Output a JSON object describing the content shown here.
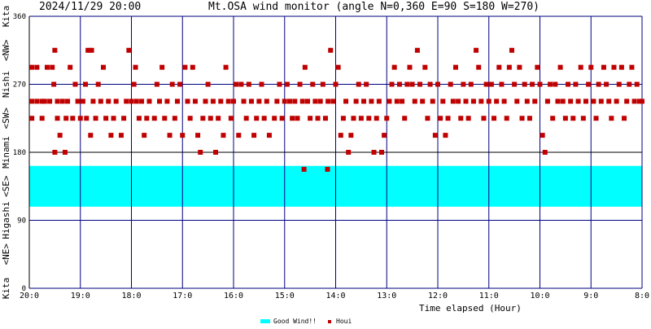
{
  "header": {
    "timestamp": "2024/11/29 20:00",
    "title": "Mt.OSA wind monitor (angle N=0,360 E=90 S=180 W=270)"
  },
  "colors": {
    "background": "#ffffff",
    "grid": "#000080",
    "frame": "#000000",
    "band": "#00ffff",
    "marker": "#c00000",
    "text": "#000000"
  },
  "chart_data": {
    "type": "scatter",
    "title": "Mt.OSA wind monitor (angle N=0,360 E=90 S=180 W=270)",
    "xlabel": "Time elapsed (Hour)",
    "ylabel": "",
    "xlim": [
      20,
      8
    ],
    "ylim": [
      0,
      360
    ],
    "x_ticks": [
      {
        "value": 20,
        "label": "20:0"
      },
      {
        "value": 19,
        "label": "19:0"
      },
      {
        "value": 18,
        "label": "18:0"
      },
      {
        "value": 17,
        "label": "17:0"
      },
      {
        "value": 16,
        "label": "16:0"
      },
      {
        "value": 15,
        "label": "15:0"
      },
      {
        "value": 14,
        "label": "14:0"
      },
      {
        "value": 13,
        "label": "13:0"
      },
      {
        "value": 12,
        "label": "12:0"
      },
      {
        "value": 11,
        "label": "11:0"
      },
      {
        "value": 10,
        "label": "10:0"
      },
      {
        "value": 9,
        "label": "9:0"
      },
      {
        "value": 8,
        "label": "8:0"
      }
    ],
    "y_ticks": [
      {
        "value": 0,
        "label": "0"
      },
      {
        "value": 90,
        "label": "90"
      },
      {
        "value": 180,
        "label": "180"
      },
      {
        "value": 270,
        "label": "270"
      },
      {
        "value": 360,
        "label": "360"
      }
    ],
    "direction_labels": [
      {
        "value": 0,
        "label": "Kita"
      },
      {
        "value": 45,
        "label": "<NE>"
      },
      {
        "value": 90,
        "label": "Higashi"
      },
      {
        "value": 135,
        "label": "<SE>"
      },
      {
        "value": 180,
        "label": "Minami"
      },
      {
        "value": 225,
        "label": "<SW>"
      },
      {
        "value": 270,
        "label": "Nishi"
      },
      {
        "value": 315,
        "label": "<NW>"
      },
      {
        "value": 360,
        "label": "Kita"
      }
    ],
    "good_wind_range": [
      108,
      162
    ],
    "legend": {
      "placement": "bottom-center",
      "entries": [
        {
          "name": "Good Wind!!",
          "kind": "band"
        },
        {
          "name": "Houi",
          "kind": "marker"
        }
      ]
    },
    "grid": true,
    "series": [
      {
        "name": "Houi",
        "points": [
          [
            19.95,
            247.5
          ],
          [
            19.95,
            225
          ],
          [
            19.95,
            292.5
          ],
          [
            19.85,
            247.5
          ],
          [
            19.85,
            292.5
          ],
          [
            19.75,
            247.5
          ],
          [
            19.75,
            225
          ],
          [
            19.7,
            247.5
          ],
          [
            19.65,
            292.5
          ],
          [
            19.6,
            247.5
          ],
          [
            19.55,
            292.5
          ],
          [
            19.52,
            270
          ],
          [
            19.5,
            315
          ],
          [
            19.5,
            180
          ],
          [
            19.45,
            247.5
          ],
          [
            19.45,
            225
          ],
          [
            19.4,
            202.5
          ],
          [
            19.35,
            247.5
          ],
          [
            19.3,
            180
          ],
          [
            19.28,
            225
          ],
          [
            19.25,
            247.5
          ],
          [
            19.2,
            292.5
          ],
          [
            19.15,
            225
          ],
          [
            19.1,
            270
          ],
          [
            19.05,
            247.5
          ],
          [
            19.0,
            225
          ],
          [
            18.95,
            247.5
          ],
          [
            18.9,
            270
          ],
          [
            18.88,
            225
          ],
          [
            18.85,
            315
          ],
          [
            18.8,
            202.5
          ],
          [
            18.78,
            315
          ],
          [
            18.75,
            247.5
          ],
          [
            18.7,
            225
          ],
          [
            18.65,
            270
          ],
          [
            18.6,
            247.5
          ],
          [
            18.55,
            292.5
          ],
          [
            18.5,
            225
          ],
          [
            18.45,
            247.5
          ],
          [
            18.4,
            202.5
          ],
          [
            18.35,
            225
          ],
          [
            18.3,
            247.5
          ],
          [
            18.2,
            202.5
          ],
          [
            18.15,
            225
          ],
          [
            18.1,
            247.5
          ],
          [
            18.05,
            315
          ],
          [
            18.0,
            247.5
          ],
          [
            17.95,
            270
          ],
          [
            17.92,
            292.5
          ],
          [
            17.9,
            247.5
          ],
          [
            17.85,
            225
          ],
          [
            17.8,
            247.5
          ],
          [
            17.75,
            202.5
          ],
          [
            17.7,
            225
          ],
          [
            17.65,
            247.5
          ],
          [
            17.55,
            225
          ],
          [
            17.5,
            270
          ],
          [
            17.45,
            247.5
          ],
          [
            17.4,
            292.5
          ],
          [
            17.35,
            225
          ],
          [
            17.3,
            247.5
          ],
          [
            17.25,
            202.5
          ],
          [
            17.2,
            270
          ],
          [
            17.15,
            225
          ],
          [
            17.1,
            247.5
          ],
          [
            17.05,
            270
          ],
          [
            17.0,
            202.5
          ],
          [
            16.95,
            292.5
          ],
          [
            16.9,
            247.5
          ],
          [
            16.85,
            225
          ],
          [
            16.8,
            292.5
          ],
          [
            16.75,
            247.5
          ],
          [
            16.7,
            202.5
          ],
          [
            16.65,
            180
          ],
          [
            16.6,
            225
          ],
          [
            16.55,
            247.5
          ],
          [
            16.5,
            270
          ],
          [
            16.45,
            225
          ],
          [
            16.4,
            247.5
          ],
          [
            16.35,
            180
          ],
          [
            16.3,
            225
          ],
          [
            16.25,
            247.5
          ],
          [
            16.2,
            202.5
          ],
          [
            16.15,
            292.5
          ],
          [
            16.1,
            247.5
          ],
          [
            16.05,
            225
          ],
          [
            16.0,
            247.5
          ],
          [
            15.95,
            270
          ],
          [
            15.9,
            202.5
          ],
          [
            15.85,
            270
          ],
          [
            15.8,
            247.5
          ],
          [
            15.75,
            225
          ],
          [
            15.7,
            270
          ],
          [
            15.65,
            247.5
          ],
          [
            15.6,
            202.5
          ],
          [
            15.55,
            225
          ],
          [
            15.5,
            247.5
          ],
          [
            15.45,
            270
          ],
          [
            15.4,
            225
          ],
          [
            15.35,
            247.5
          ],
          [
            15.3,
            202.5
          ],
          [
            15.2,
            225
          ],
          [
            15.15,
            247.5
          ],
          [
            15.1,
            270
          ],
          [
            15.05,
            225
          ],
          [
            15.0,
            247.5
          ],
          [
            14.95,
            270
          ],
          [
            14.9,
            247.5
          ],
          [
            14.85,
            225
          ],
          [
            14.8,
            247.5
          ],
          [
            14.75,
            225
          ],
          [
            14.7,
            270
          ],
          [
            14.65,
            247.5
          ],
          [
            14.62,
            157.5
          ],
          [
            14.6,
            292.5
          ],
          [
            14.55,
            247.5
          ],
          [
            14.5,
            225
          ],
          [
            14.45,
            270
          ],
          [
            14.4,
            247.5
          ],
          [
            14.35,
            225
          ],
          [
            14.3,
            247.5
          ],
          [
            14.25,
            270
          ],
          [
            14.2,
            225
          ],
          [
            14.16,
            157.5
          ],
          [
            14.15,
            247.5
          ],
          [
            14.1,
            315
          ],
          [
            14.05,
            247.5
          ],
          [
            14.0,
            270
          ],
          [
            13.95,
            292.5
          ],
          [
            13.9,
            202.5
          ],
          [
            13.85,
            225
          ],
          [
            13.8,
            247.5
          ],
          [
            13.75,
            180
          ],
          [
            13.7,
            202.5
          ],
          [
            13.65,
            225
          ],
          [
            13.6,
            247.5
          ],
          [
            13.55,
            270
          ],
          [
            13.5,
            225
          ],
          [
            13.45,
            247.5
          ],
          [
            13.4,
            270
          ],
          [
            13.35,
            225
          ],
          [
            13.3,
            247.5
          ],
          [
            13.25,
            180
          ],
          [
            13.2,
            225
          ],
          [
            13.15,
            247.5
          ],
          [
            13.1,
            180
          ],
          [
            13.05,
            202.5
          ],
          [
            13.0,
            225
          ],
          [
            12.95,
            247.5
          ],
          [
            12.9,
            270
          ],
          [
            12.85,
            292.5
          ],
          [
            12.8,
            247.5
          ],
          [
            12.75,
            270
          ],
          [
            12.7,
            247.5
          ],
          [
            12.65,
            225
          ],
          [
            12.6,
            270
          ],
          [
            12.55,
            292.5
          ],
          [
            12.5,
            270
          ],
          [
            12.45,
            247.5
          ],
          [
            12.4,
            315
          ],
          [
            12.35,
            270
          ],
          [
            12.3,
            247.5
          ],
          [
            12.25,
            292.5
          ],
          [
            12.2,
            225
          ],
          [
            12.15,
            270
          ],
          [
            12.1,
            247.5
          ],
          [
            12.05,
            202.5
          ],
          [
            12.0,
            270
          ],
          [
            11.95,
            225
          ],
          [
            11.9,
            247.5
          ],
          [
            11.85,
            202.5
          ],
          [
            11.8,
            225
          ],
          [
            11.75,
            270
          ],
          [
            11.7,
            247.5
          ],
          [
            11.65,
            292.5
          ],
          [
            11.6,
            247.5
          ],
          [
            11.55,
            225
          ],
          [
            11.5,
            270
          ],
          [
            11.45,
            247.5
          ],
          [
            11.4,
            225
          ],
          [
            11.35,
            270
          ],
          [
            11.3,
            247.5
          ],
          [
            11.25,
            315
          ],
          [
            11.2,
            292.5
          ],
          [
            11.15,
            247.5
          ],
          [
            11.1,
            225
          ],
          [
            11.05,
            270
          ],
          [
            11.0,
            247.5
          ],
          [
            10.95,
            270
          ],
          [
            10.9,
            225
          ],
          [
            10.85,
            247.5
          ],
          [
            10.8,
            292.5
          ],
          [
            10.75,
            270
          ],
          [
            10.7,
            247.5
          ],
          [
            10.65,
            225
          ],
          [
            10.6,
            292.5
          ],
          [
            10.55,
            315
          ],
          [
            10.5,
            270
          ],
          [
            10.45,
            247.5
          ],
          [
            10.4,
            292.5
          ],
          [
            10.35,
            225
          ],
          [
            10.3,
            270
          ],
          [
            10.25,
            247.5
          ],
          [
            10.2,
            225
          ],
          [
            10.15,
            270
          ],
          [
            10.1,
            247.5
          ],
          [
            10.05,
            292.5
          ],
          [
            10.0,
            270
          ],
          [
            9.95,
            202.5
          ],
          [
            9.9,
            180
          ],
          [
            9.85,
            247.5
          ],
          [
            9.8,
            270
          ],
          [
            9.75,
            225
          ],
          [
            9.7,
            270
          ],
          [
            9.65,
            247.5
          ],
          [
            9.6,
            292.5
          ],
          [
            9.55,
            247.5
          ],
          [
            9.5,
            225
          ],
          [
            9.45,
            270
          ],
          [
            9.4,
            247.5
          ],
          [
            9.35,
            225
          ],
          [
            9.3,
            270
          ],
          [
            9.25,
            247.5
          ],
          [
            9.2,
            292.5
          ],
          [
            9.15,
            225
          ],
          [
            9.1,
            247.5
          ],
          [
            9.05,
            270
          ],
          [
            9.0,
            292.5
          ],
          [
            8.95,
            247.5
          ],
          [
            8.9,
            225
          ],
          [
            8.85,
            270
          ],
          [
            8.8,
            247.5
          ],
          [
            8.75,
            292.5
          ],
          [
            8.7,
            270
          ],
          [
            8.65,
            247.5
          ],
          [
            8.6,
            225
          ],
          [
            8.55,
            292.5
          ],
          [
            8.5,
            247.5
          ],
          [
            8.45,
            270
          ],
          [
            8.4,
            292.5
          ],
          [
            8.35,
            225
          ],
          [
            8.3,
            247.5
          ],
          [
            8.25,
            270
          ],
          [
            8.2,
            292.5
          ],
          [
            8.15,
            247.5
          ],
          [
            8.1,
            270
          ],
          [
            8.05,
            247.5
          ],
          [
            8.0,
            247.5
          ]
        ]
      }
    ]
  }
}
